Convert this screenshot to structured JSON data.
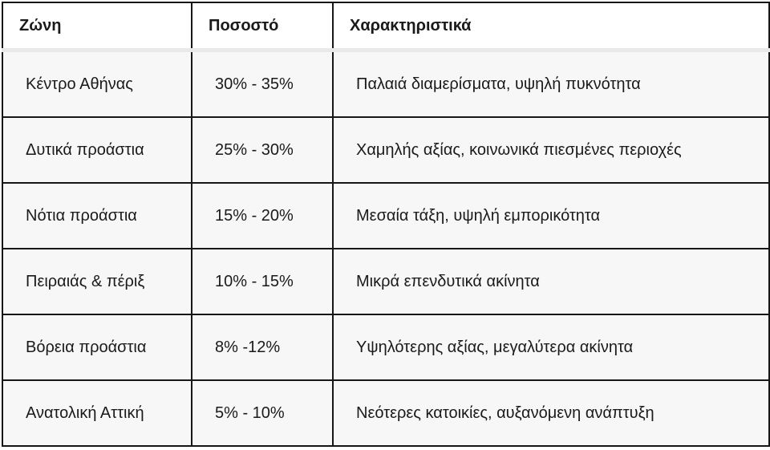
{
  "table": {
    "columns": [
      "Ζώνη",
      "Ποσοστό",
      "Χαρακτηριστικά"
    ],
    "rows": [
      {
        "zone": "Κέντρο Αθήνας",
        "percent": "30% - 35%",
        "characteristics": "Παλαιά διαμερίσματα, υψηλή πυκνότητα"
      },
      {
        "zone": "Δυτικά προάστια",
        "percent": "25% - 30%",
        "characteristics": "Χαμηλής αξίας, κοινωνικά πιεσμένες περιοχές"
      },
      {
        "zone": "Νότια προάστια",
        "percent": "15% - 20%",
        "characteristics": "Μεσαία τάξη, υψηλή εμπορικότητα"
      },
      {
        "zone": "Πειραιάς & πέριξ",
        "percent": "10% - 15%",
        "characteristics": "Μικρά επενδυτικά ακίνητα"
      },
      {
        "zone": "Βόρεια προάστια",
        "percent": "8% -12%",
        "characteristics": "Υψηλότερης αξίας, μεγαλύτερα ακίνητα"
      },
      {
        "zone": "Ανατολική Αττική",
        "percent": "5% - 10%",
        "characteristics": "Νεότερες κατοικίες, αυξανόμενη ανάπτυξη"
      }
    ],
    "colors": {
      "border_dark": "#161616",
      "header_separator": "#e9e9e9",
      "row_background": "#f7f7f7",
      "header_background": "#ffffff",
      "text": "#1a1a1a"
    }
  }
}
